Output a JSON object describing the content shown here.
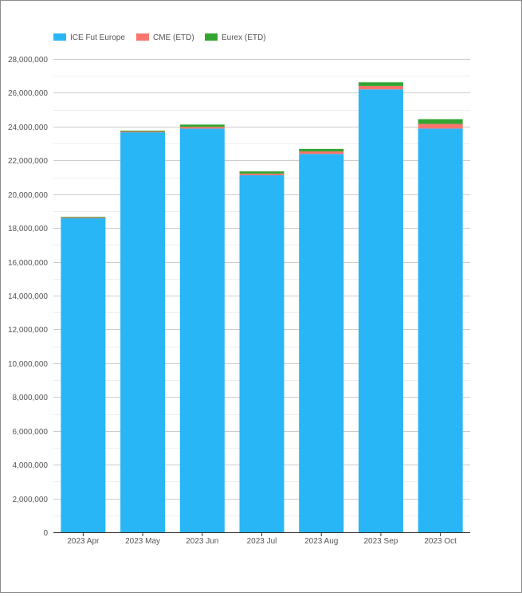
{
  "chart_data": {
    "type": "bar",
    "stacked": true,
    "categories": [
      "2023 Apr",
      "2023 May",
      "2023 Jun",
      "2023 Jul",
      "2023 Aug",
      "2023 Sep",
      "2023 Oct"
    ],
    "series": [
      {
        "name": "ICE Fut Europe",
        "color": "#29b6f6",
        "values": [
          18580000,
          23660000,
          23880000,
          21120000,
          22380000,
          26200000,
          23880000
        ]
      },
      {
        "name": "CME (ETD)",
        "color": "#f8766d",
        "values": [
          40000,
          50000,
          100000,
          100000,
          150000,
          200000,
          280000
        ]
      },
      {
        "name": "Eurex (ETD)",
        "color": "#33a532",
        "values": [
          40000,
          50000,
          140000,
          130000,
          150000,
          220000,
          280000
        ]
      }
    ],
    "ylim": [
      0,
      28000000
    ],
    "y_ticks": [
      0,
      2000000,
      4000000,
      6000000,
      8000000,
      10000000,
      12000000,
      14000000,
      16000000,
      18000000,
      20000000,
      22000000,
      24000000,
      26000000,
      28000000
    ],
    "grid": true,
    "legend_position": "top-left",
    "title": "",
    "xlabel": "",
    "ylabel": ""
  }
}
